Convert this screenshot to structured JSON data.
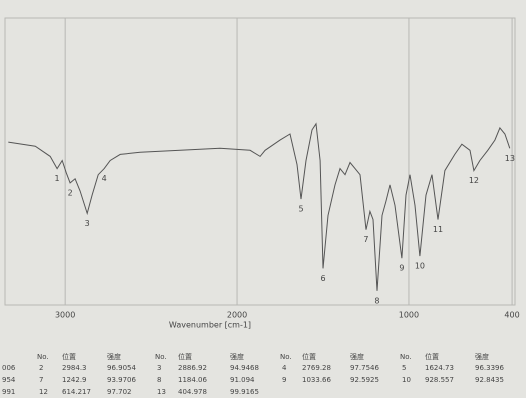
{
  "chart_data": {
    "type": "line",
    "x_label": "Wavenumber [cm-1]",
    "xlim": [
      3350,
      383
    ],
    "ylim": [
      90.4,
      104.4
    ],
    "xticks": [
      3000,
      2000,
      1000,
      400
    ],
    "grid": true,
    "series": [
      {
        "color": "#555555",
        "x": [
          3331,
          3174,
          3087,
          3047,
          3017,
          2994,
          2971,
          2942,
          2913,
          2872,
          2843,
          2808,
          2773,
          2738,
          2680,
          2564,
          2331,
          2099,
          1924,
          1866,
          1837,
          1750,
          1692,
          1651,
          1628,
          1599,
          1564,
          1541,
          1517,
          1500,
          1471,
          1430,
          1401,
          1372,
          1343,
          1314,
          1285,
          1250,
          1227,
          1209,
          1186,
          1157,
          1134,
          1110,
          1081,
          1041,
          1017,
          994,
          965,
          936,
          901,
          866,
          831,
          791,
          733,
          692,
          645,
          622,
          587,
          541,
          500,
          471,
          442,
          413
        ],
        "values": [
          98.4,
          98.2,
          97.7,
          97.1,
          97.5,
          96.9,
          96.4,
          96.6,
          96.0,
          94.9,
          95.8,
          96.8,
          97.1,
          97.5,
          97.8,
          97.9,
          98.0,
          98.1,
          98.0,
          97.7,
          98.0,
          98.5,
          98.8,
          97.3,
          95.6,
          97.5,
          99.0,
          99.3,
          97.5,
          92.2,
          94.8,
          96.3,
          97.1,
          96.8,
          97.4,
          97.1,
          96.8,
          94.1,
          95.0,
          94.6,
          91.1,
          94.8,
          95.5,
          96.3,
          95.3,
          92.7,
          95.8,
          96.8,
          95.3,
          92.8,
          95.8,
          96.8,
          94.6,
          97.0,
          97.8,
          98.3,
          98.0,
          97.0,
          97.5,
          98.0,
          98.5,
          99.1,
          98.8,
          98.1
        ]
      }
    ],
    "annotations": [
      {
        "text": "1",
        "x": 3047,
        "y": 97.1
      },
      {
        "text": "2",
        "x": 2971,
        "y": 96.4
      },
      {
        "text": "3",
        "x": 2872,
        "y": 94.9
      },
      {
        "text": "4",
        "x": 2773,
        "y": 97.1
      },
      {
        "text": "5",
        "x": 1628,
        "y": 95.6
      },
      {
        "text": "6",
        "x": 1500,
        "y": 92.2
      },
      {
        "text": "7",
        "x": 1250,
        "y": 94.1
      },
      {
        "text": "8",
        "x": 1186,
        "y": 91.1
      },
      {
        "text": "9",
        "x": 1041,
        "y": 92.7
      },
      {
        "text": "10",
        "x": 936,
        "y": 92.8
      },
      {
        "text": "11",
        "x": 831,
        "y": 94.6
      },
      {
        "text": "12",
        "x": 622,
        "y": 97.0
      },
      {
        "text": "13",
        "x": 413,
        "y": 98.1
      }
    ]
  },
  "table": {
    "header": [
      "No.",
      "位置",
      "强度",
      "No.",
      "位置",
      "强度",
      "No.",
      "位置",
      "强度",
      "No.",
      "位置",
      "强度"
    ],
    "rows": [
      [
        "006",
        "2",
        "2984.3",
        "96.9054",
        "3",
        "2886.92",
        "94.9468",
        "4",
        "2769.28",
        "97.7546",
        "5",
        "1624.73",
        "96.3396"
      ],
      [
        "954",
        "7",
        "1242.9",
        "93.9706",
        "8",
        "1184.06",
        "91.094",
        "9",
        "1033.66",
        "92.5925",
        "10",
        "928.557",
        "92.8435"
      ],
      [
        "991",
        "12",
        "614.217",
        "97.702",
        "13",
        "404.978",
        "99.9165"
      ]
    ]
  }
}
